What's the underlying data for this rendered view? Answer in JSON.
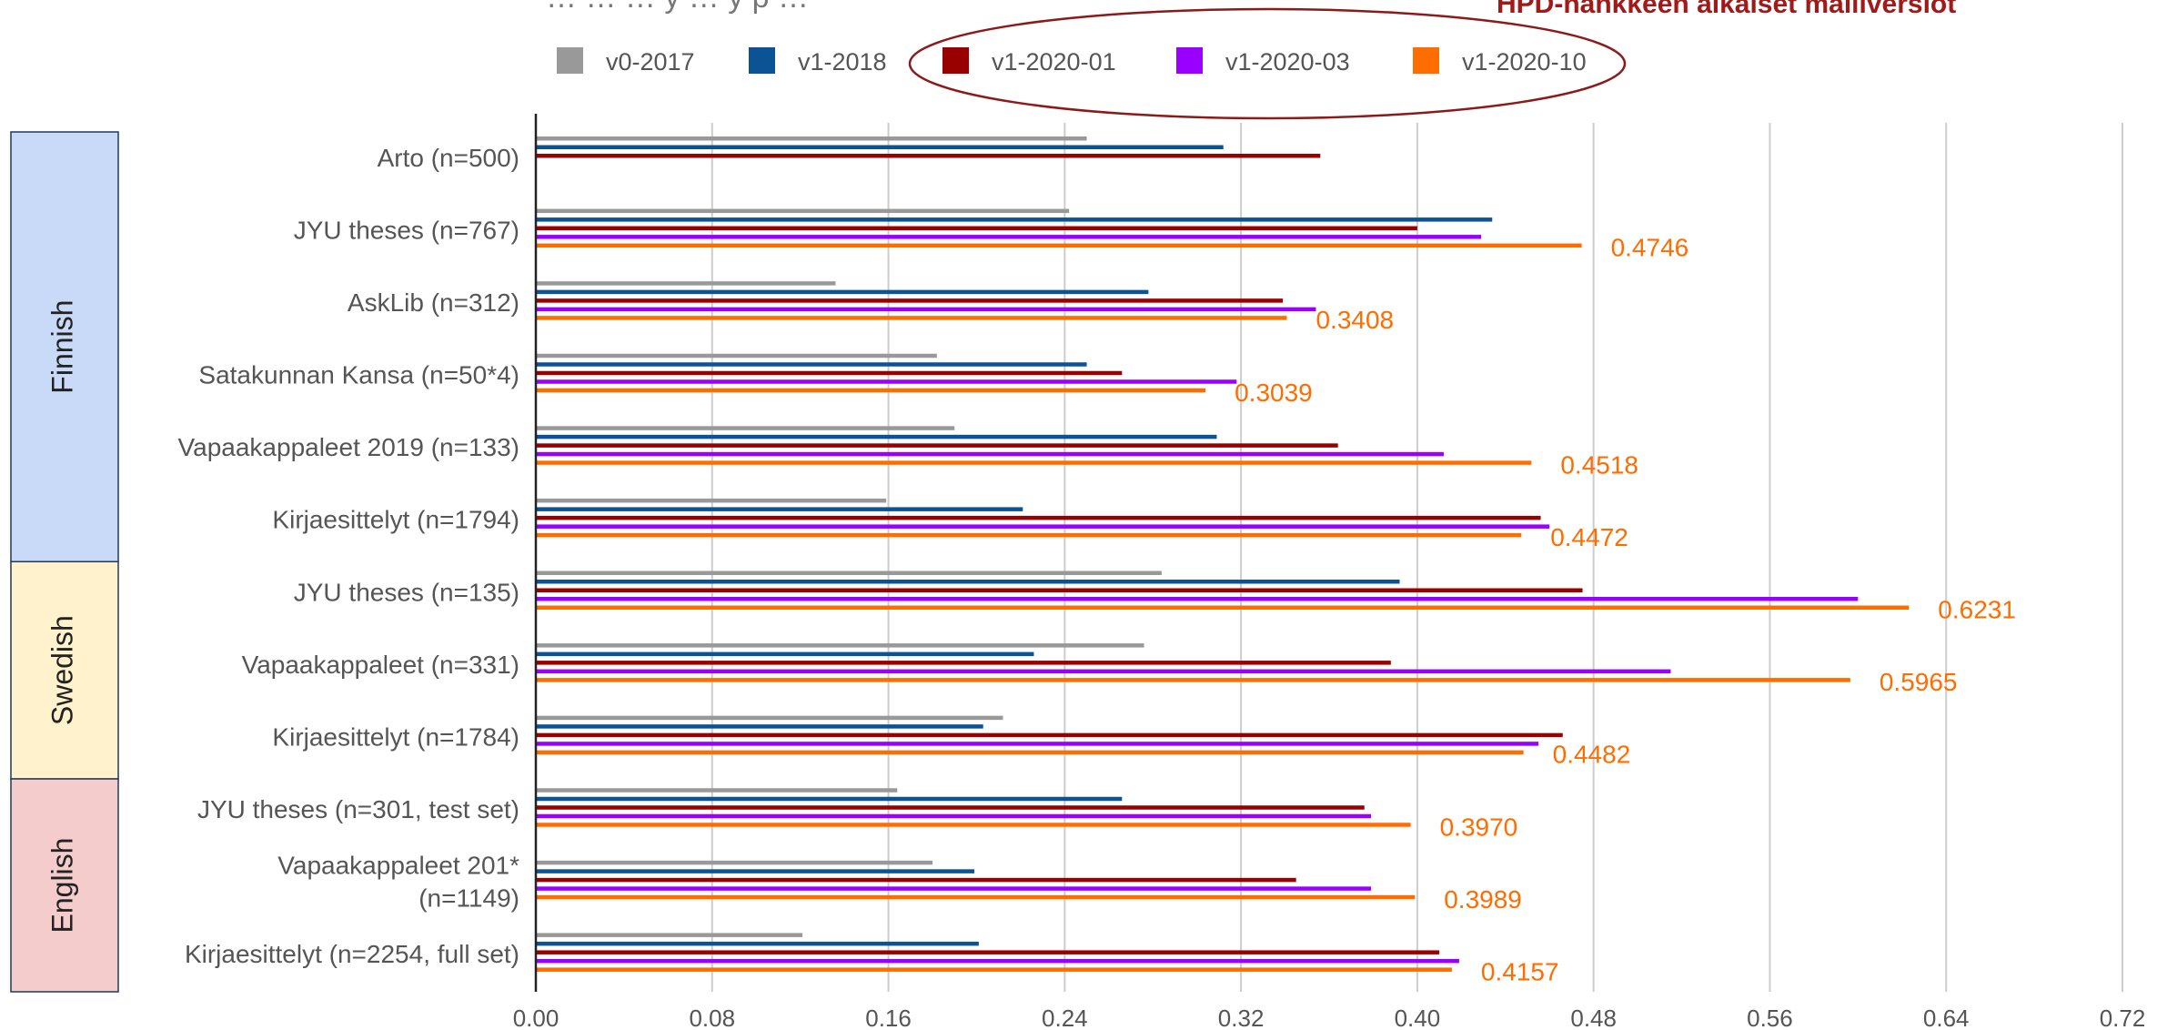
{
  "header_note": "HPD-hankkeen alkaiset malliversiot",
  "header_partial_title": "… … … y … y p …",
  "colors": {
    "grid": "#cccccc",
    "axis": "#222222",
    "ellipse": "#8b1a1a",
    "header_note": "#a11a1a",
    "value_labels": "#ff6d00"
  },
  "chart_data": {
    "type": "bar",
    "orientation": "horizontal",
    "categories": [
      "Arto (n=500)",
      "JYU theses (n=767)",
      "AskLib (n=312)",
      "Satakunnan Kansa (n=50*4)",
      "Vapaakappaleet 2019 (n=133)",
      "Kirjaesittelyt (n=1794)",
      "JYU theses (n=135)",
      "Vapaakappaleet (n=331)",
      "Kirjaesittelyt (n=1784)",
      "JYU theses (n=301, test set)",
      "Vapaakappaleet 201*\n(n=1149)",
      "Kirjaesittelyt (n=2254, full set)"
    ],
    "groups": [
      {
        "label": "Finnish",
        "start": 0,
        "end": 5,
        "color": "#c9daf8"
      },
      {
        "label": "Swedish",
        "start": 6,
        "end": 8,
        "color": "#fff2cc"
      },
      {
        "label": "English",
        "start": 9,
        "end": 11,
        "color": "#f4cccc"
      }
    ],
    "series": [
      {
        "name": "v0-2017",
        "color": "#999999",
        "values": [
          0.25,
          0.242,
          0.136,
          0.182,
          0.19,
          0.159,
          0.284,
          0.276,
          0.212,
          0.164,
          0.18,
          0.121
        ]
      },
      {
        "name": "v1-2018",
        "color": "#0b5394",
        "values": [
          0.312,
          0.434,
          0.278,
          0.25,
          0.309,
          0.221,
          0.392,
          0.226,
          0.203,
          0.266,
          0.199,
          0.201
        ]
      },
      {
        "name": "v1-2020-01",
        "color": "#990000",
        "values": [
          0.356,
          0.4,
          0.339,
          0.266,
          0.364,
          0.456,
          0.475,
          0.388,
          0.466,
          0.376,
          0.345,
          0.41
        ]
      },
      {
        "name": "v1-2020-03",
        "color": "#9900ff",
        "values": [
          null,
          0.429,
          0.354,
          0.318,
          0.412,
          0.46,
          0.6,
          0.515,
          0.455,
          0.379,
          0.379,
          0.419
        ]
      },
      {
        "name": "v1-2020-10",
        "color": "#ff6d00",
        "values": [
          null,
          0.4746,
          0.3408,
          0.3039,
          0.4518,
          0.4472,
          0.6231,
          0.5965,
          0.4482,
          0.397,
          0.3989,
          0.4157
        ]
      }
    ],
    "data_labels": [
      "",
      "0.4746",
      "0.3408",
      "0.3039",
      "0.4518",
      "0.4472",
      "0.6231",
      "0.5965",
      "0.4482",
      "0.3970",
      "0.3989",
      "0.4157"
    ],
    "xlim": [
      0,
      0.72
    ],
    "xticks": [
      "0.00",
      "0.08",
      "0.16",
      "0.24",
      "0.32",
      "0.40",
      "0.48",
      "0.56",
      "0.64",
      "0.72"
    ],
    "grid": true,
    "legend_position": "top",
    "legend_highlight": [
      "v1-2020-01",
      "v1-2020-03",
      "v1-2020-10"
    ]
  }
}
